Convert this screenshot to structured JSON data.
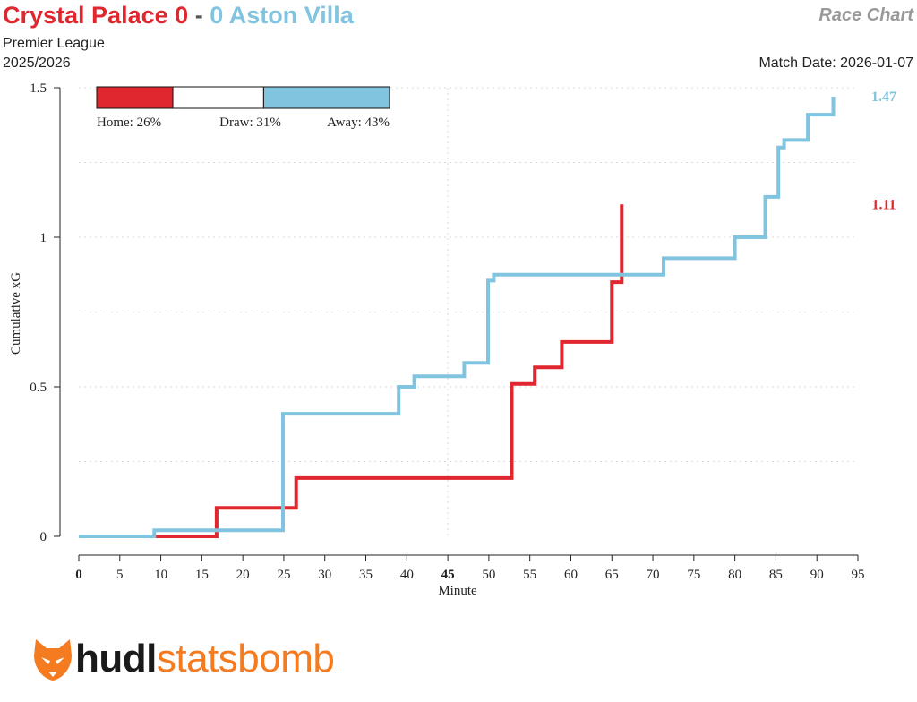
{
  "header": {
    "home_team": "Crystal Palace",
    "home_score": "0",
    "separator": "-",
    "away_score": "0",
    "away_team": "Aston Villa",
    "competition": "Premier League",
    "season": "2025/2026",
    "chart_kind": "Race Chart",
    "match_date": "Match Date: 2026-01-07"
  },
  "logo": {
    "part1": "hudl",
    "part2": "statsbomb",
    "icon": "fox-head-icon"
  },
  "colors": {
    "home": "#e0262f",
    "away": "#80c4e0",
    "draw": "#ffffff",
    "brand_orange": "#f47b20"
  },
  "chart_data": {
    "type": "line",
    "step": true,
    "xlabel": "Minute",
    "ylabel": "Cumulative xG",
    "xlim": [
      0,
      95
    ],
    "ylim": [
      0,
      1.5
    ],
    "x_ticks": [
      0,
      5,
      10,
      15,
      20,
      25,
      30,
      35,
      40,
      45,
      50,
      55,
      60,
      65,
      70,
      75,
      80,
      85,
      90,
      95
    ],
    "x_tick_labels": [
      "0",
      "5",
      "10",
      "15",
      "20",
      "25",
      "30",
      "35",
      "40",
      "45",
      "50",
      "55",
      "60",
      "65",
      "70",
      "75",
      "80",
      "85",
      "90",
      "95"
    ],
    "x_bold_ticks": [
      0,
      45
    ],
    "y_ticks": [
      0,
      0.5,
      1,
      1.5
    ],
    "y_tick_labels": [
      "0",
      "0.5",
      "1",
      "1.5"
    ],
    "grid": true,
    "probability_bar": {
      "home_pct": 26,
      "draw_pct": 31,
      "away_pct": 43,
      "home_label": "Home: 26%",
      "draw_label": "Draw: 31%",
      "away_label": "Away: 43%"
    },
    "series": [
      {
        "side": "home",
        "final_label": "1.11",
        "points": [
          [
            0,
            0
          ],
          [
            16.8,
            0
          ],
          [
            16.8,
            0.095
          ],
          [
            26.5,
            0.095
          ],
          [
            26.5,
            0.195
          ],
          [
            52.8,
            0.195
          ],
          [
            52.8,
            0.51
          ],
          [
            55.6,
            0.51
          ],
          [
            55.6,
            0.565
          ],
          [
            58.9,
            0.565
          ],
          [
            58.9,
            0.65
          ],
          [
            65.0,
            0.65
          ],
          [
            65.0,
            0.85
          ],
          [
            66.2,
            0.85
          ],
          [
            66.2,
            1.11
          ]
        ]
      },
      {
        "side": "away",
        "final_label": "1.47",
        "points": [
          [
            0,
            0
          ],
          [
            9.2,
            0
          ],
          [
            9.2,
            0.02
          ],
          [
            24.9,
            0.02
          ],
          [
            24.9,
            0.41
          ],
          [
            39.0,
            0.41
          ],
          [
            39.0,
            0.5
          ],
          [
            40.9,
            0.5
          ],
          [
            40.9,
            0.535
          ],
          [
            47.0,
            0.535
          ],
          [
            47.0,
            0.58
          ],
          [
            49.9,
            0.58
          ],
          [
            49.9,
            0.855
          ],
          [
            50.6,
            0.855
          ],
          [
            50.6,
            0.875
          ],
          [
            71.3,
            0.875
          ],
          [
            71.3,
            0.93
          ],
          [
            80.0,
            0.93
          ],
          [
            80.0,
            1.0
          ],
          [
            83.7,
            1.0
          ],
          [
            83.7,
            1.135
          ],
          [
            85.3,
            1.135
          ],
          [
            85.3,
            1.3
          ],
          [
            86.0,
            1.3
          ],
          [
            86.0,
            1.325
          ],
          [
            88.9,
            1.325
          ],
          [
            88.9,
            1.41
          ],
          [
            92.0,
            1.41
          ],
          [
            92.0,
            1.47
          ]
        ]
      }
    ]
  }
}
